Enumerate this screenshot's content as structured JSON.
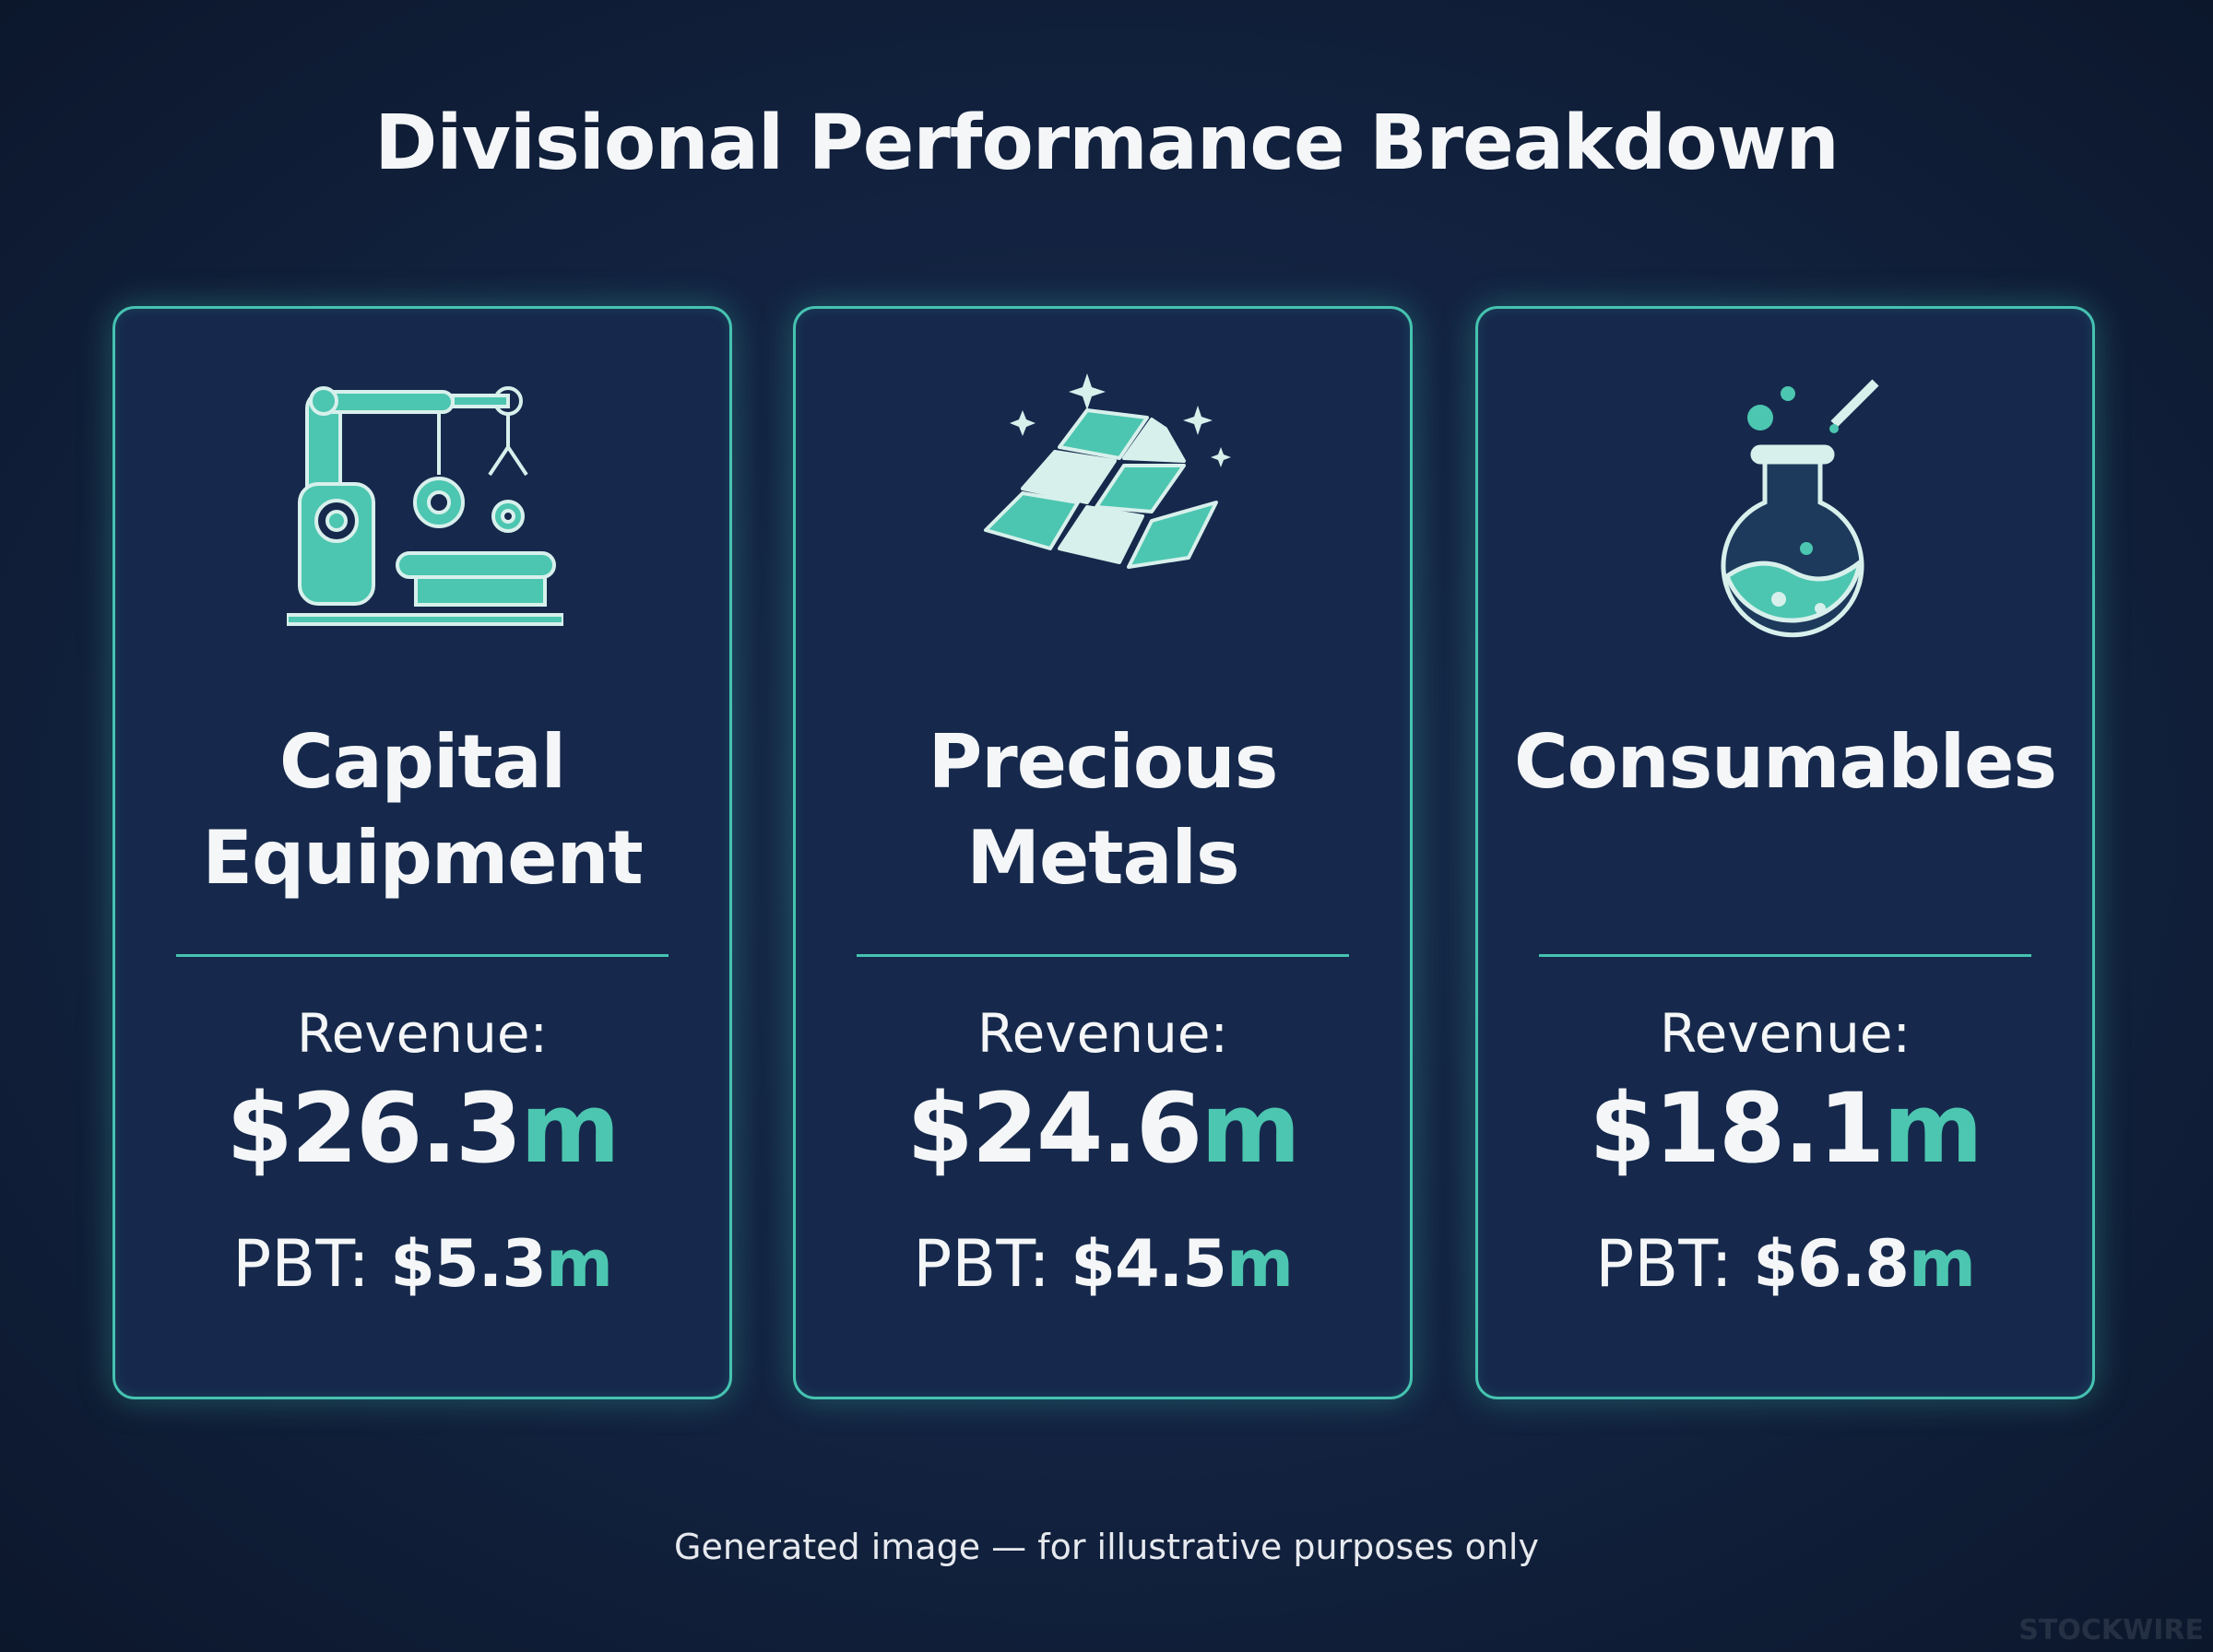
{
  "title": "Divisional Performance Breakdown",
  "cards": [
    {
      "name": "Capital Equipment",
      "revenue_label": "Revenue:",
      "revenue": {
        "amount": "$26.3",
        "unit": "m"
      },
      "pbt_label": "PBT:",
      "pbt": {
        "amount": "$5.3",
        "unit": "m"
      }
    },
    {
      "name": "Precious Metals",
      "revenue_label": "Revenue:",
      "revenue": {
        "amount": "$24.6",
        "unit": "m"
      },
      "pbt_label": "PBT:",
      "pbt": {
        "amount": "$4.5",
        "unit": "m"
      }
    },
    {
      "name": "Consumables",
      "revenue_label": "Revenue:",
      "revenue": {
        "amount": "$18.1",
        "unit": "m"
      },
      "pbt_label": "PBT:",
      "pbt": {
        "amount": "$6.8",
        "unit": "m"
      }
    }
  ],
  "footer": "Generated image — for illustrative purposes only",
  "watermark": "STOCKWIRE"
}
